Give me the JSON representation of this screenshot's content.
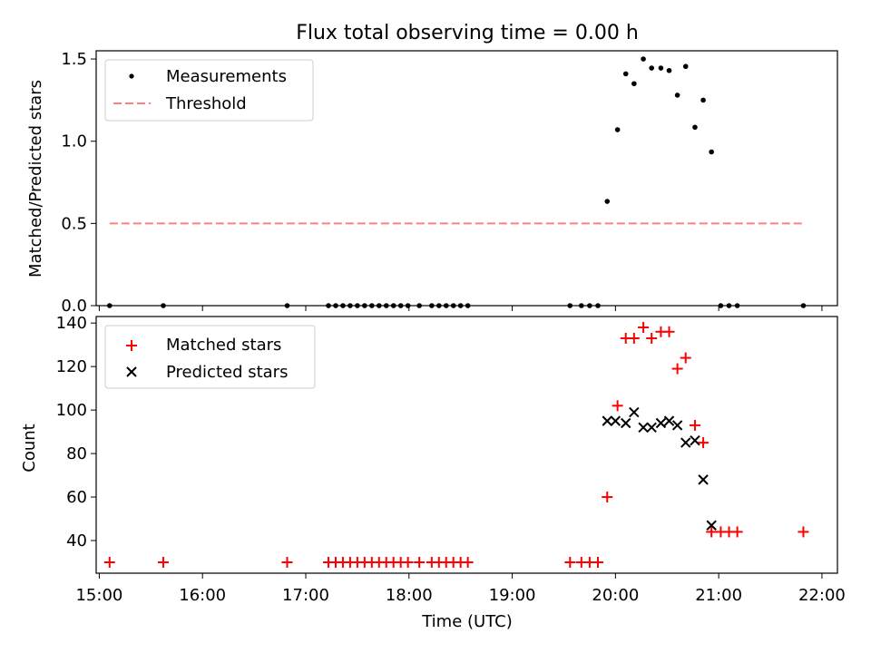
{
  "chart_data": [
    {
      "type": "scatter",
      "title": "Flux total observing time = 0.00 h",
      "ylabel": "Matched/Predicted stars",
      "xlabel": "",
      "xlim": [
        14.97,
        22.15
      ],
      "ylim": [
        0,
        1.55
      ],
      "yticks": [
        0,
        0.5,
        1.0,
        1.5
      ],
      "ytick_labels": [
        "0.0",
        "0.5",
        "1.0",
        "1.5"
      ],
      "legend_position": "top-left",
      "series": [
        {
          "name": "Measurements",
          "marker": "dot",
          "color": "#000000",
          "points": [
            [
              15.1,
              0
            ],
            [
              15.62,
              0
            ],
            [
              16.82,
              0
            ],
            [
              17.22,
              0
            ],
            [
              17.29,
              0
            ],
            [
              17.36,
              0
            ],
            [
              17.43,
              0
            ],
            [
              17.5,
              0
            ],
            [
              17.57,
              0
            ],
            [
              17.64,
              0
            ],
            [
              17.71,
              0
            ],
            [
              17.78,
              0
            ],
            [
              17.85,
              0
            ],
            [
              17.92,
              0
            ],
            [
              17.99,
              0
            ],
            [
              18.1,
              0
            ],
            [
              18.22,
              0
            ],
            [
              18.29,
              0
            ],
            [
              18.36,
              0
            ],
            [
              18.43,
              0
            ],
            [
              18.5,
              0
            ],
            [
              18.57,
              0
            ],
            [
              19.56,
              0
            ],
            [
              19.67,
              0
            ],
            [
              19.75,
              0
            ],
            [
              19.83,
              0
            ],
            [
              19.92,
              0.634
            ],
            [
              20.02,
              1.07
            ],
            [
              20.1,
              1.41
            ],
            [
              20.18,
              1.35
            ],
            [
              20.27,
              1.5
            ],
            [
              20.35,
              1.445
            ],
            [
              20.44,
              1.445
            ],
            [
              20.52,
              1.43
            ],
            [
              20.6,
              1.28
            ],
            [
              20.68,
              1.455
            ],
            [
              20.77,
              1.085
            ],
            [
              20.85,
              1.25
            ],
            [
              20.93,
              0.935
            ],
            [
              21.02,
              0
            ],
            [
              21.1,
              0
            ],
            [
              21.18,
              0
            ],
            [
              21.82,
              0
            ]
          ]
        },
        {
          "name": "Threshold",
          "marker": "dashed-line",
          "color": "#ff7f7f",
          "x": [
            15.1,
            21.82
          ],
          "y": [
            0.5,
            0.5
          ]
        }
      ]
    },
    {
      "type": "scatter",
      "title": "",
      "ylabel": "Count",
      "xlabel": "Time (UTC)",
      "xlim": [
        14.97,
        22.15
      ],
      "ylim": [
        25,
        143
      ],
      "yticks": [
        40,
        60,
        80,
        100,
        120,
        140
      ],
      "ytick_labels": [
        "40",
        "60",
        "80",
        "100",
        "120",
        "140"
      ],
      "xticks": [
        15,
        16,
        17,
        18,
        19,
        20,
        21,
        22
      ],
      "xtick_labels": [
        "15:00",
        "16:00",
        "17:00",
        "18:00",
        "19:00",
        "20:00",
        "21:00",
        "22:00"
      ],
      "legend_position": "top-left",
      "series": [
        {
          "name": "Matched stars",
          "marker": "plus",
          "color": "#ff0000",
          "points": [
            [
              15.1,
              30
            ],
            [
              15.62,
              30
            ],
            [
              16.82,
              30
            ],
            [
              17.22,
              30
            ],
            [
              17.29,
              30
            ],
            [
              17.36,
              30
            ],
            [
              17.43,
              30
            ],
            [
              17.5,
              30
            ],
            [
              17.57,
              30
            ],
            [
              17.64,
              30
            ],
            [
              17.71,
              30
            ],
            [
              17.78,
              30
            ],
            [
              17.85,
              30
            ],
            [
              17.92,
              30
            ],
            [
              17.99,
              30
            ],
            [
              18.1,
              30
            ],
            [
              18.22,
              30
            ],
            [
              18.29,
              30
            ],
            [
              18.36,
              30
            ],
            [
              18.43,
              30
            ],
            [
              18.5,
              30
            ],
            [
              18.57,
              30
            ],
            [
              19.56,
              30
            ],
            [
              19.67,
              30
            ],
            [
              19.75,
              30
            ],
            [
              19.83,
              30
            ],
            [
              19.92,
              60
            ],
            [
              20.02,
              102
            ],
            [
              20.1,
              133
            ],
            [
              20.18,
              133
            ],
            [
              20.27,
              138
            ],
            [
              20.35,
              133
            ],
            [
              20.44,
              136
            ],
            [
              20.52,
              136
            ],
            [
              20.6,
              119
            ],
            [
              20.68,
              124
            ],
            [
              20.77,
              93
            ],
            [
              20.85,
              85
            ],
            [
              20.93,
              44
            ],
            [
              21.02,
              44
            ],
            [
              21.1,
              44
            ],
            [
              21.18,
              44
            ],
            [
              21.82,
              44
            ]
          ]
        },
        {
          "name": "Predicted stars",
          "marker": "x",
          "color": "#000000",
          "points": [
            [
              19.92,
              95
            ],
            [
              20.0,
              95
            ],
            [
              20.1,
              94
            ],
            [
              20.18,
              99
            ],
            [
              20.27,
              92
            ],
            [
              20.35,
              92
            ],
            [
              20.44,
              94
            ],
            [
              20.52,
              95
            ],
            [
              20.6,
              93
            ],
            [
              20.68,
              85
            ],
            [
              20.77,
              86
            ],
            [
              20.85,
              68
            ],
            [
              20.93,
              47
            ]
          ]
        }
      ]
    }
  ]
}
